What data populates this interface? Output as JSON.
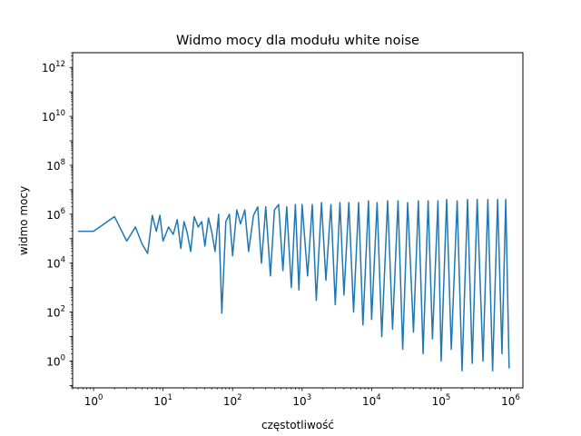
{
  "chart_data": {
    "type": "line",
    "title": "Widmo mocy dla modułu white noise",
    "xlabel": "częstotliwość",
    "ylabel": "widmo mocy",
    "xscale": "log",
    "yscale": "log",
    "xlim": [
      0.5,
      1500000
    ],
    "ylim": [
      0.08,
      4000000000000.0
    ],
    "grid": false,
    "legend": "none",
    "series_color": "#1f77b4",
    "x_ticks": [
      {
        "value": 1,
        "base": "10",
        "exp": "0"
      },
      {
        "value": 10,
        "base": "10",
        "exp": "1"
      },
      {
        "value": 100,
        "base": "10",
        "exp": "2"
      },
      {
        "value": 1000,
        "base": "10",
        "exp": "3"
      },
      {
        "value": 10000,
        "base": "10",
        "exp": "4"
      },
      {
        "value": 100000,
        "base": "10",
        "exp": "5"
      },
      {
        "value": 1000000,
        "base": "10",
        "exp": "6"
      }
    ],
    "y_ticks": [
      {
        "value": 1,
        "base": "10",
        "exp": "0"
      },
      {
        "value": 100,
        "base": "10",
        "exp": "2"
      },
      {
        "value": 10000,
        "base": "10",
        "exp": "4"
      },
      {
        "value": 1000000,
        "base": "10",
        "exp": "6"
      },
      {
        "value": 100000000,
        "base": "10",
        "exp": "8"
      },
      {
        "value": 10000000000,
        "base": "10",
        "exp": "10"
      },
      {
        "value": 1000000000000,
        "base": "10",
        "exp": "12"
      }
    ],
    "series": [
      {
        "values_note_start": 0,
        "x": [
          0.6,
          1,
          2,
          3,
          4,
          5,
          6,
          7,
          8,
          9,
          10,
          12,
          14,
          16,
          18,
          20,
          22,
          25,
          28,
          32,
          36,
          40,
          45,
          50,
          56,
          63,
          70,
          80,
          90,
          100,
          115,
          130,
          150,
          170,
          200,
          230,
          260,
          300,
          350,
          400,
          460,
          530,
          600,
          700,
          800,
          900,
          1000,
          1200,
          1400,
          1600,
          1900,
          2200,
          2600,
          3000,
          3500,
          4000,
          4700,
          5500,
          6500,
          7500,
          9000,
          10000,
          12000,
          14000,
          17000,
          20000,
          24000,
          28000,
          33000,
          40000,
          47000,
          55000,
          65000,
          75000,
          90000,
          100000,
          120000,
          140000,
          170000,
          200000,
          240000,
          280000,
          330000,
          400000,
          470000,
          550000,
          650000,
          750000,
          850000,
          950000
        ],
        "y": [
          200000,
          200000,
          800000,
          80000,
          300000,
          60000,
          25000,
          900000,
          200000,
          900000,
          80000,
          300000,
          150000,
          600000,
          40000,
          500000,
          200000,
          30000,
          800000,
          300000,
          500000,
          50000,
          700000,
          200000,
          30000,
          1000000,
          90,
          500000,
          1000000,
          20000,
          1500000,
          400000,
          1500000,
          30000,
          900000,
          2000000,
          10000,
          2000000,
          3000,
          1500000,
          2500000,
          5000,
          2000000,
          1000,
          2500000,
          800,
          2500000,
          3000,
          2500000,
          300,
          3000000,
          2000,
          2500000,
          200,
          3000000,
          500,
          3000000,
          100,
          3000000,
          30,
          3500000,
          50,
          3000000,
          10,
          3500000,
          20,
          3500000,
          3,
          3000000,
          15,
          3500000,
          2,
          3500000,
          8,
          3500000,
          1,
          4000000,
          3,
          3500000,
          0.4,
          4000000,
          0.8,
          4000000,
          1,
          4000000,
          0.4,
          4000000,
          2,
          4000000,
          0.5
        ]
      }
    ]
  }
}
